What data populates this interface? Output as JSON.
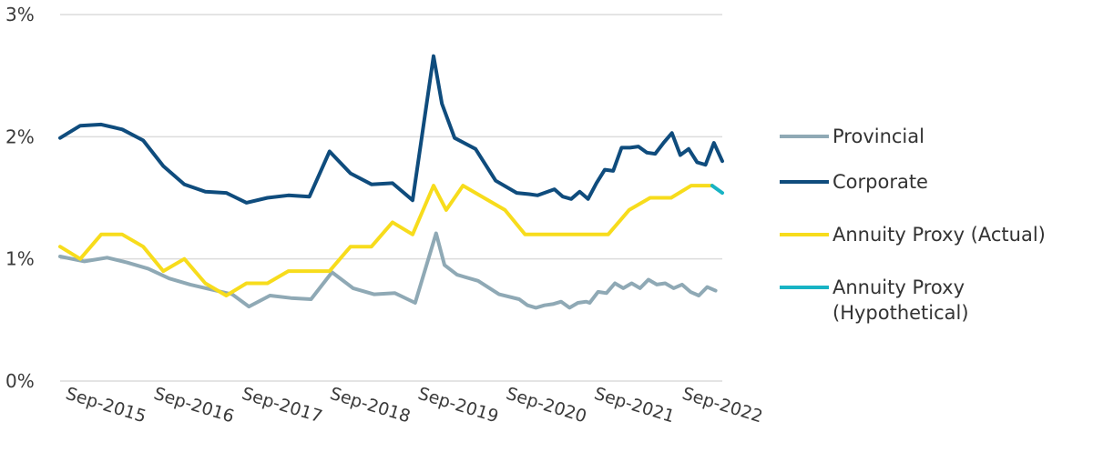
{
  "chart_data": {
    "type": "line",
    "x_ticks": [
      "Sep-2015",
      "Sep-2016",
      "Sep-2017",
      "Sep-2018",
      "Sep-2019",
      "Sep-2020",
      "Sep-2021",
      "Sep-2022"
    ],
    "y_ticks": [
      "0%",
      "1%",
      "2%",
      "3%"
    ],
    "ylim": [
      0,
      3
    ],
    "grid": true,
    "legend_position": "right",
    "series": [
      {
        "name": "Provincial",
        "color": "#8fa9b5",
        "points": [
          [
            2015.44,
            1.02
          ],
          [
            2015.73,
            0.98
          ],
          [
            2016.0,
            1.01
          ],
          [
            2016.24,
            0.97
          ],
          [
            2016.49,
            0.92
          ],
          [
            2016.74,
            0.84
          ],
          [
            2016.99,
            0.79
          ],
          [
            2017.24,
            0.75
          ],
          [
            2017.49,
            0.71
          ],
          [
            2017.69,
            0.61
          ],
          [
            2017.94,
            0.7
          ],
          [
            2018.19,
            0.68
          ],
          [
            2018.43,
            0.67
          ],
          [
            2018.68,
            0.89
          ],
          [
            2018.93,
            0.76
          ],
          [
            2019.18,
            0.71
          ],
          [
            2019.43,
            0.72
          ],
          [
            2019.67,
            0.64
          ],
          [
            2019.92,
            1.21
          ],
          [
            2020.02,
            0.95
          ],
          [
            2020.17,
            0.87
          ],
          [
            2020.42,
            0.82
          ],
          [
            2020.67,
            0.71
          ],
          [
            2020.91,
            0.67
          ],
          [
            2021.01,
            0.62
          ],
          [
            2021.11,
            0.6
          ],
          [
            2021.21,
            0.62
          ],
          [
            2021.31,
            0.63
          ],
          [
            2021.41,
            0.65
          ],
          [
            2021.51,
            0.6
          ],
          [
            2021.61,
            0.64
          ],
          [
            2021.71,
            0.65
          ],
          [
            2021.75,
            0.64
          ],
          [
            2021.85,
            0.73
          ],
          [
            2021.95,
            0.72
          ],
          [
            2022.05,
            0.8
          ],
          [
            2022.15,
            0.76
          ],
          [
            2022.25,
            0.8
          ],
          [
            2022.35,
            0.76
          ],
          [
            2022.45,
            0.83
          ],
          [
            2022.55,
            0.79
          ],
          [
            2022.65,
            0.8
          ],
          [
            2022.75,
            0.76
          ],
          [
            2022.85,
            0.79
          ],
          [
            2022.95,
            0.73
          ],
          [
            2023.05,
            0.7
          ],
          [
            2023.15,
            0.77
          ],
          [
            2023.25,
            0.74
          ]
        ]
      },
      {
        "name": "Corporate",
        "color": "#0f4c7d",
        "points": [
          [
            2015.44,
            1.99
          ],
          [
            2015.68,
            2.09
          ],
          [
            2015.93,
            2.1
          ],
          [
            2016.18,
            2.06
          ],
          [
            2016.43,
            1.97
          ],
          [
            2016.67,
            1.76
          ],
          [
            2016.92,
            1.61
          ],
          [
            2017.17,
            1.55
          ],
          [
            2017.42,
            1.54
          ],
          [
            2017.66,
            1.46
          ],
          [
            2017.91,
            1.5
          ],
          [
            2018.16,
            1.52
          ],
          [
            2018.41,
            1.51
          ],
          [
            2018.65,
            1.88
          ],
          [
            2018.9,
            1.7
          ],
          [
            2019.15,
            1.61
          ],
          [
            2019.4,
            1.62
          ],
          [
            2019.64,
            1.48
          ],
          [
            2019.89,
            2.66
          ],
          [
            2019.99,
            2.27
          ],
          [
            2020.14,
            1.99
          ],
          [
            2020.39,
            1.9
          ],
          [
            2020.63,
            1.64
          ],
          [
            2020.88,
            1.54
          ],
          [
            2021.03,
            1.53
          ],
          [
            2021.13,
            1.52
          ],
          [
            2021.33,
            1.57
          ],
          [
            2021.43,
            1.51
          ],
          [
            2021.53,
            1.49
          ],
          [
            2021.63,
            1.55
          ],
          [
            2021.73,
            1.49
          ],
          [
            2021.83,
            1.62
          ],
          [
            2021.93,
            1.73
          ],
          [
            2022.03,
            1.72
          ],
          [
            2022.13,
            1.91
          ],
          [
            2022.23,
            1.91
          ],
          [
            2022.33,
            1.92
          ],
          [
            2022.43,
            1.87
          ],
          [
            2022.53,
            1.86
          ],
          [
            2022.63,
            1.95
          ],
          [
            2022.73,
            2.03
          ],
          [
            2022.83,
            1.85
          ],
          [
            2022.93,
            1.9
          ],
          [
            2023.03,
            1.79
          ],
          [
            2023.13,
            1.77
          ],
          [
            2023.23,
            1.95
          ],
          [
            2023.33,
            1.8
          ]
        ]
      },
      {
        "name": "Annuity Proxy (Actual)",
        "color": "#f7dc1c",
        "points": [
          [
            2015.44,
            1.1
          ],
          [
            2015.68,
            1.0
          ],
          [
            2015.93,
            1.2
          ],
          [
            2016.18,
            1.2
          ],
          [
            2016.43,
            1.1
          ],
          [
            2016.67,
            0.9
          ],
          [
            2016.92,
            1.0
          ],
          [
            2017.17,
            0.8
          ],
          [
            2017.42,
            0.7
          ],
          [
            2017.66,
            0.8
          ],
          [
            2017.91,
            0.8
          ],
          [
            2018.16,
            0.9
          ],
          [
            2018.41,
            0.9
          ],
          [
            2018.65,
            0.9
          ],
          [
            2018.9,
            1.1
          ],
          [
            2019.15,
            1.1
          ],
          [
            2019.4,
            1.3
          ],
          [
            2019.64,
            1.2
          ],
          [
            2019.89,
            1.6
          ],
          [
            2020.04,
            1.4
          ],
          [
            2020.24,
            1.6
          ],
          [
            2020.49,
            1.5
          ],
          [
            2020.74,
            1.4
          ],
          [
            2020.98,
            1.2
          ],
          [
            2021.23,
            1.2
          ],
          [
            2021.48,
            1.2
          ],
          [
            2021.73,
            1.2
          ],
          [
            2021.97,
            1.2
          ],
          [
            2022.22,
            1.4
          ],
          [
            2022.47,
            1.5
          ],
          [
            2022.72,
            1.5
          ],
          [
            2022.96,
            1.6
          ],
          [
            2023.21,
            1.6
          ]
        ]
      },
      {
        "name": "Annuity Proxy (Hypothetical)",
        "color": "#18b3c4",
        "points": [
          [
            2023.21,
            1.6
          ],
          [
            2023.33,
            1.54
          ]
        ]
      }
    ]
  }
}
